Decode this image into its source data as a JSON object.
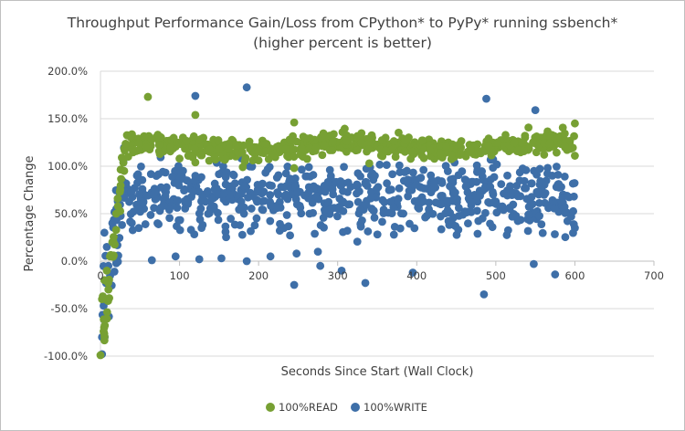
{
  "chart_data": {
    "type": "scatter",
    "title": "Throughput Performance Gain/Loss from CPython* to PyPy* running ssbench*",
    "subtitle": "(higher percent is better)",
    "xlabel": "Seconds Since Start (Wall Clock)",
    "ylabel": "Percentage Change",
    "xlim": [
      0,
      700
    ],
    "ylim": [
      -100,
      200
    ],
    "x_ticks": [
      "0",
      "100",
      "200",
      "300",
      "400",
      "500",
      "600",
      "700"
    ],
    "y_ticks": [
      "-100.0%",
      "-50.0%",
      "0.0%",
      "50.0%",
      "100.0%",
      "150.0%",
      "200.0%"
    ],
    "grid": true,
    "legend_position": "bottom",
    "series": [
      {
        "name": "100%READ",
        "color": "#77a033",
        "description": "dense band ~115-135% from ~30s to ~600s, ramping up from about -100% at 0s",
        "sample_points": [
          [
            0,
            -99
          ],
          [
            2,
            -40
          ],
          [
            3,
            -37
          ],
          [
            5,
            -20
          ],
          [
            8,
            -10
          ],
          [
            12,
            5
          ],
          [
            15,
            20
          ],
          [
            20,
            50
          ],
          [
            25,
            75
          ],
          [
            30,
            95
          ],
          [
            35,
            110
          ],
          [
            40,
            118
          ],
          [
            60,
            173
          ],
          [
            100,
            108
          ],
          [
            120,
            154
          ],
          [
            120,
            104
          ],
          [
            180,
            99
          ],
          [
            245,
            146
          ],
          [
            245,
            98
          ],
          [
            340,
            103
          ],
          [
            600,
            145
          ],
          [
            600,
            111
          ]
        ]
      },
      {
        "name": "100%WRITE",
        "color": "#3e6fa8",
        "description": "wide cloud ~25-100% from ~30s to ~600s with scattered outliers",
        "sample_points": [
          [
            2,
            -98
          ],
          [
            2,
            -80
          ],
          [
            4,
            -47
          ],
          [
            5,
            30
          ],
          [
            8,
            15
          ],
          [
            10,
            -5
          ],
          [
            15,
            40
          ],
          [
            20,
            55
          ],
          [
            65,
            1
          ],
          [
            95,
            5
          ],
          [
            120,
            174
          ],
          [
            125,
            2
          ],
          [
            153,
            3
          ],
          [
            185,
            183
          ],
          [
            185,
            0
          ],
          [
            215,
            5
          ],
          [
            245,
            -25
          ],
          [
            248,
            8
          ],
          [
            275,
            10
          ],
          [
            278,
            -5
          ],
          [
            305,
            -10
          ],
          [
            335,
            -23
          ],
          [
            395,
            -12
          ],
          [
            485,
            -35
          ],
          [
            488,
            171
          ],
          [
            548,
            -3
          ],
          [
            550,
            159
          ],
          [
            575,
            -14
          ],
          [
            600,
            35
          ]
        ]
      }
    ]
  }
}
